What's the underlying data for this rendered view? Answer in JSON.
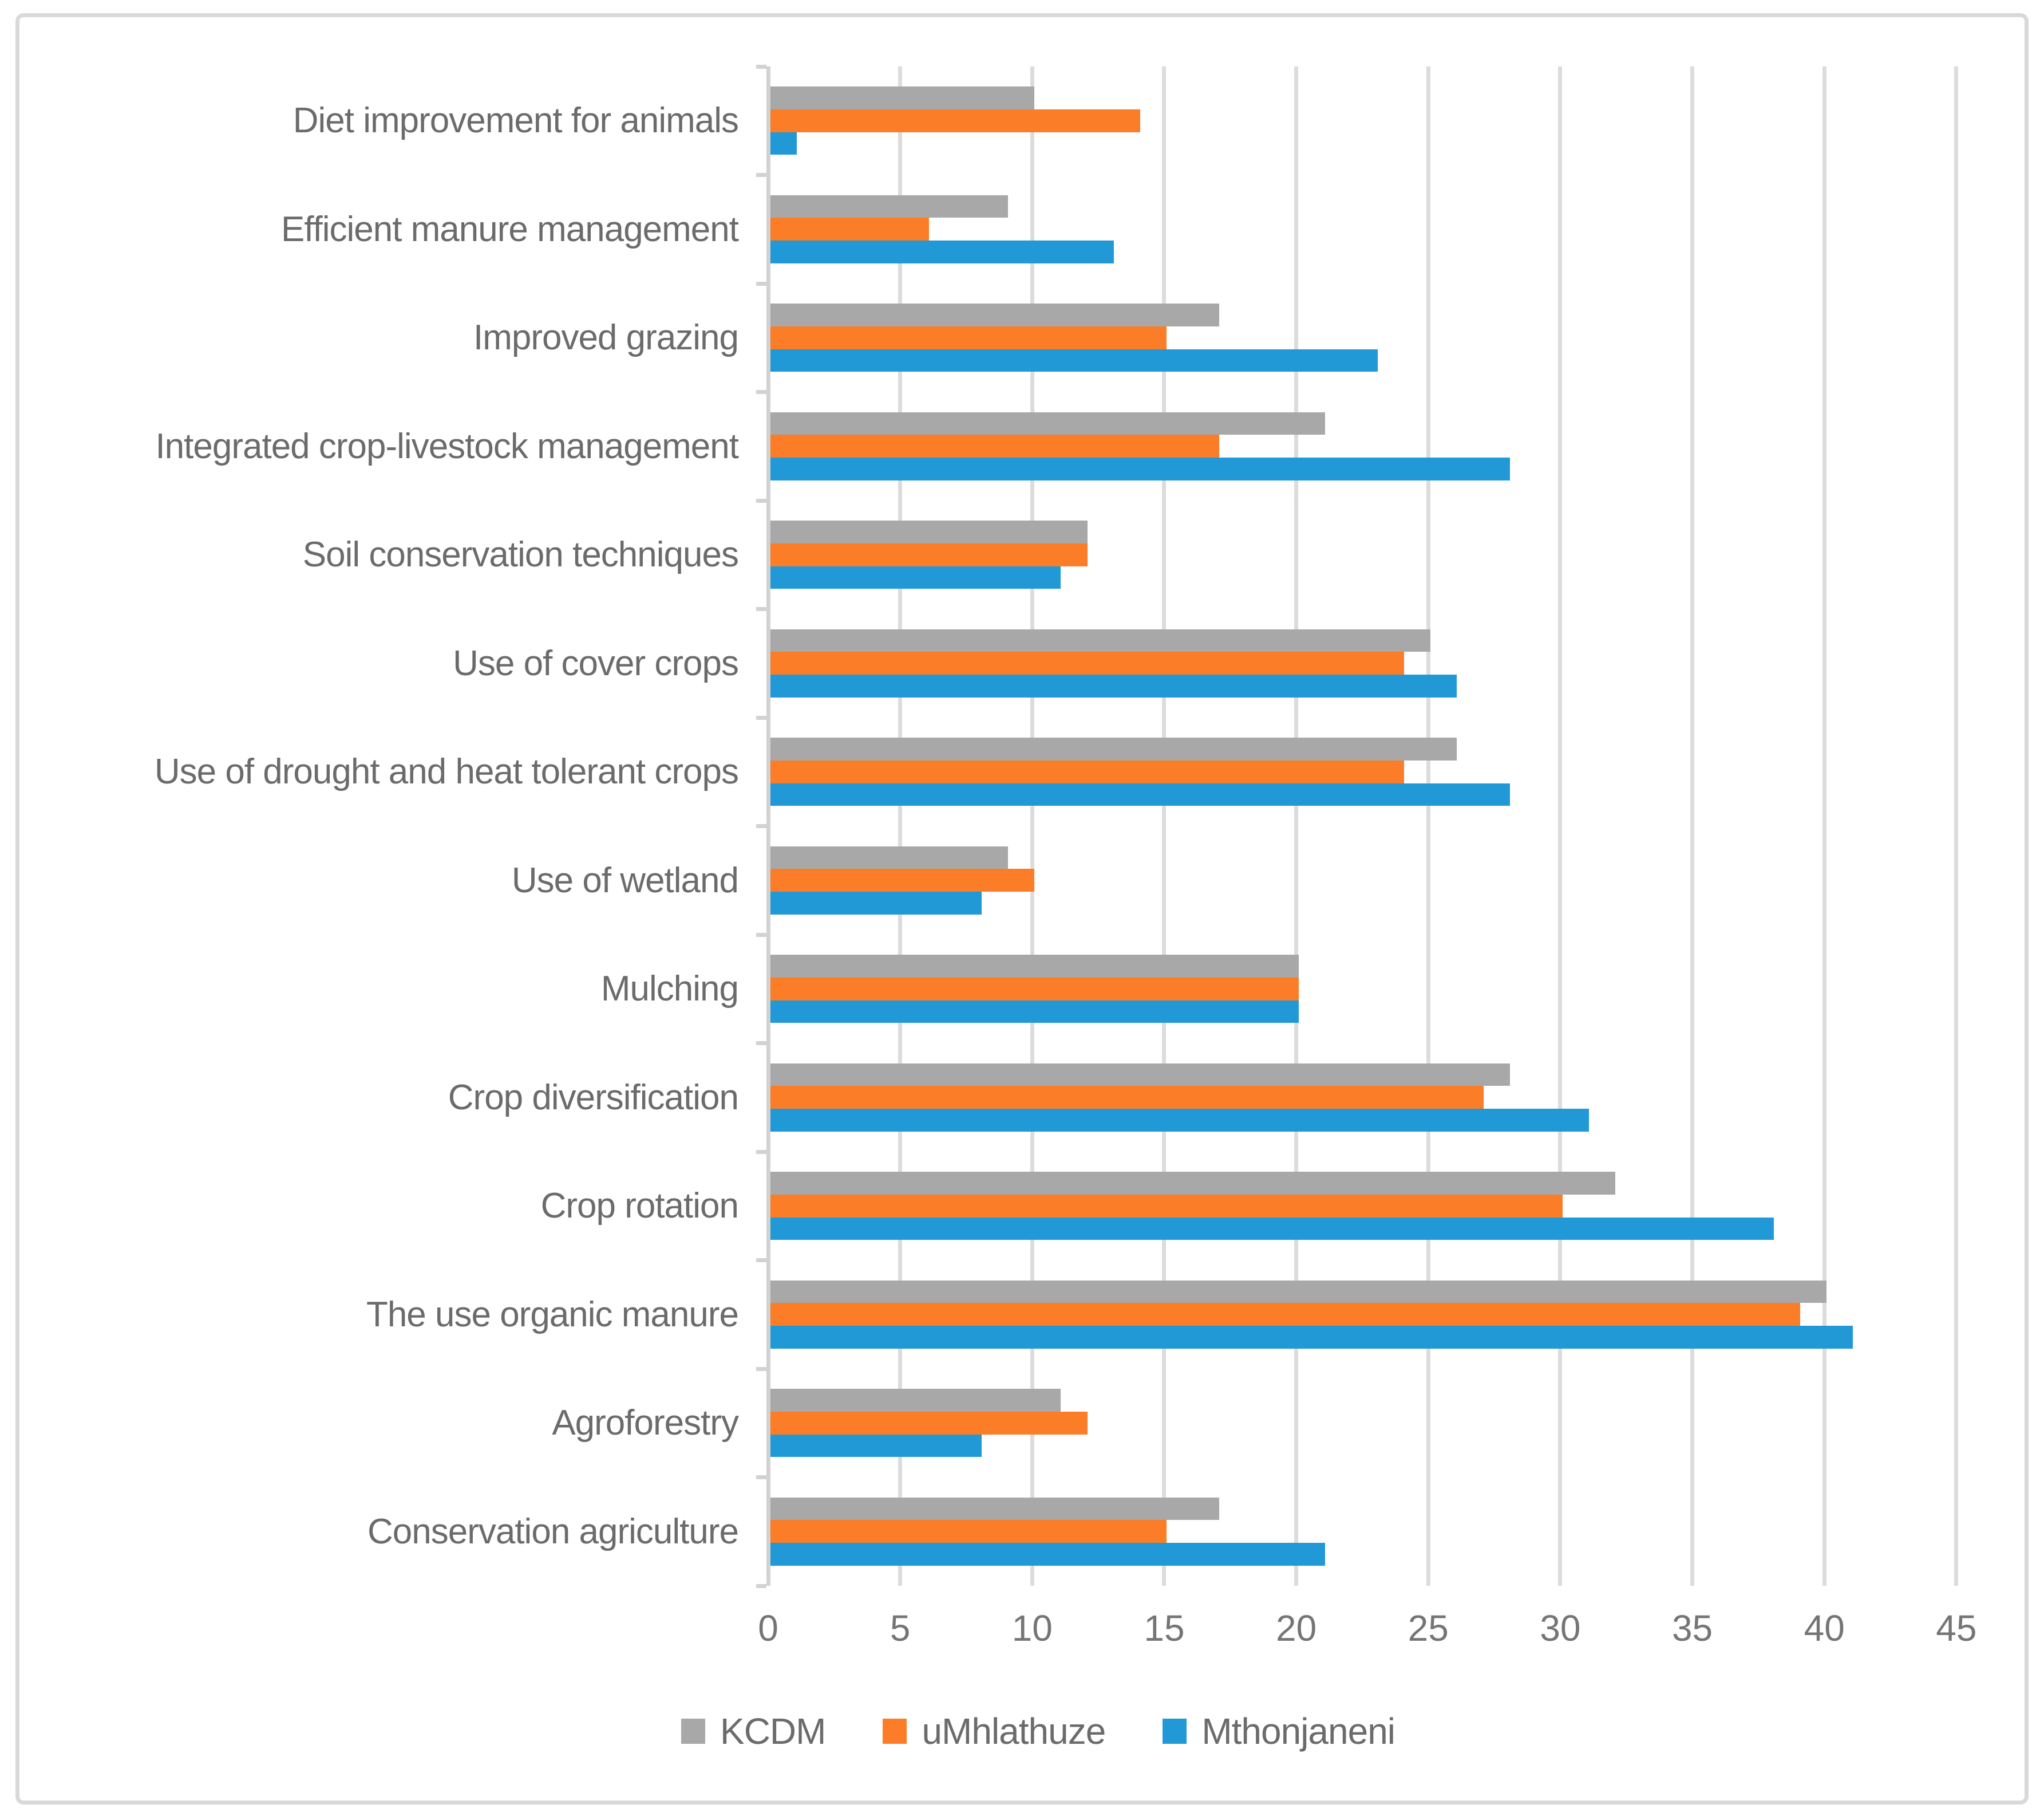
{
  "chart_data": {
    "type": "bar",
    "orientation": "horizontal",
    "title": "",
    "xlabel": "",
    "ylabel": "",
    "xlim": [
      0,
      45
    ],
    "x_ticks": [
      0,
      5,
      10,
      15,
      20,
      25,
      30,
      35,
      40,
      45
    ],
    "grid": "vertical",
    "legend_position": "bottom",
    "categories": [
      "Diet improvement for animals",
      "Efficient manure management",
      "Improved grazing",
      "Integrated crop-livestock management",
      "Soil conservation techniques",
      "Use of cover crops",
      "Use of drought and heat tolerant crops",
      "Use of wetland",
      "Mulching",
      "Crop diversification",
      "Crop rotation",
      "The use organic manure",
      "Agroforestry",
      "Conservation agriculture"
    ],
    "series": [
      {
        "name": "KCDM",
        "color": "#A8A8A8",
        "values": [
          10,
          9,
          17,
          21,
          12,
          25,
          26,
          9,
          20,
          28,
          32,
          40,
          11,
          17
        ]
      },
      {
        "name": "uMhlathuze",
        "color": "#FB7D28",
        "values": [
          14,
          6,
          15,
          17,
          12,
          24,
          24,
          10,
          20,
          27,
          30,
          39,
          12,
          15
        ]
      },
      {
        "name": "Mthonjaneni",
        "color": "#2199D6",
        "values": [
          1,
          13,
          23,
          28,
          11,
          26,
          28,
          8,
          20,
          31,
          38,
          41,
          8,
          21
        ]
      }
    ]
  },
  "colors": {
    "gridline": "#DCDCDC",
    "axis_line": "#D2D2D2",
    "frame_border": "#D9D9D9",
    "label_text": "#6B6B6B",
    "tick_text": "#757575",
    "background": "#FFFFFF"
  }
}
